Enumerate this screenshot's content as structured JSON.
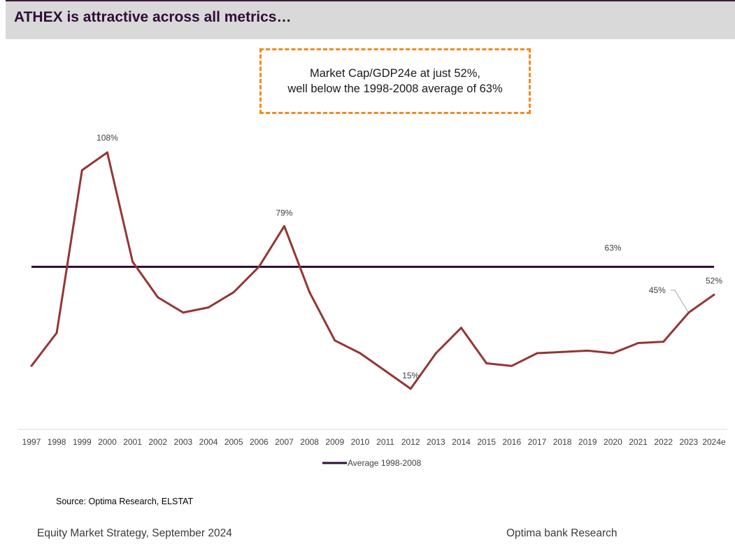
{
  "header": {
    "title": "ATHEX is attractive across all metrics…"
  },
  "callout": {
    "line1": "Market Cap/GDP24e at just 52%,",
    "line2": "well below the 1998-2008 average of 63%"
  },
  "chart_data": {
    "type": "line",
    "categories": [
      "1997",
      "1998",
      "1999",
      "2000",
      "2001",
      "2002",
      "2003",
      "2004",
      "2005",
      "2006",
      "2007",
      "2008",
      "2009",
      "2010",
      "2011",
      "2012",
      "2013",
      "2014",
      "2015",
      "2016",
      "2017",
      "2018",
      "2019",
      "2020",
      "2021",
      "2022",
      "2023",
      "2024e"
    ],
    "series": [
      {
        "name": "",
        "color": "#943634",
        "values": [
          24,
          37,
          101,
          108,
          65,
          51,
          45,
          47,
          53,
          63,
          79,
          53,
          34,
          29,
          22,
          15,
          29,
          39,
          25,
          24,
          29,
          29.5,
          30,
          29,
          33,
          33.5,
          45,
          52
        ]
      },
      {
        "name": "Average 1998-2008",
        "color": "#2e0e34",
        "values": [
          63,
          63,
          63,
          63,
          63,
          63,
          63,
          63,
          63,
          63,
          63,
          63,
          63,
          63,
          63,
          63,
          63,
          63,
          63,
          63,
          63,
          63,
          63,
          63,
          63,
          63,
          63,
          63
        ]
      }
    ],
    "ylim": [
      -1,
      119
    ],
    "grid": false,
    "legend": "bottom",
    "annotations": [
      {
        "label": "108%",
        "index": 3
      },
      {
        "label": "79%",
        "index": 10
      },
      {
        "label": "15%",
        "index": 15
      },
      {
        "label": "45%",
        "index": 26
      },
      {
        "label": "52%",
        "index": 27
      },
      {
        "label": "63%",
        "index": 23,
        "series": 1
      }
    ]
  },
  "source": "Source: Optima Research, ELSTAT",
  "footer": {
    "left": "Equity Market Strategy, September 2024",
    "right": "Optima bank Research"
  }
}
